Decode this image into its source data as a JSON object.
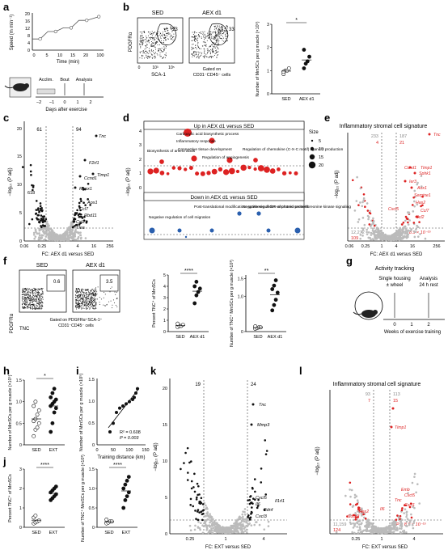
{
  "panel_letters": [
    "a",
    "b",
    "c",
    "d",
    "e",
    "f",
    "g",
    "h",
    "i",
    "j",
    "k",
    "l"
  ],
  "a": {
    "ylabel": "Speed (m min⁻¹)",
    "yticks": [
      "0",
      "4",
      "8",
      "12",
      "16",
      "20"
    ],
    "xticks": [
      "0",
      "5",
      "10",
      "15",
      "20",
      "100"
    ],
    "xlabel": "Time (min)",
    "timeline_labels": [
      "Acclim.",
      "Bout",
      "Analysis"
    ],
    "timeline_ticks": [
      "−2",
      "−1",
      "0",
      "1",
      "2"
    ],
    "timeline_xlabel": "Days after exercise"
  },
  "b": {
    "flow_titles": [
      "SED",
      "AEX d1"
    ],
    "gate_values": [
      "13",
      "33"
    ],
    "yaxis": "PDGFRα",
    "xaxis": "SCA-1",
    "x_ticks": [
      "0",
      "10³",
      "10⁵"
    ],
    "gated_note": "Gated on",
    "gated_note2": "CD31⁻CD45⁻ cells",
    "ylabel": "Number of MmSCs per g muscle (×10⁵)",
    "yticks": [
      "0",
      "1",
      "2",
      "3"
    ],
    "xticks": [
      "SED",
      "AEX d1"
    ],
    "sig": "*"
  },
  "c": {
    "counts": [
      "61",
      "94"
    ],
    "left_count": "618",
    "xlabel": "FC: AEX d1 versus SED",
    "ylabel": "−log₁₀ (P adj)",
    "xticks": [
      "0.06",
      "0.25",
      "1",
      "4",
      "16",
      "256"
    ],
    "yticks": [
      "0",
      "5",
      "10",
      "15",
      "20"
    ],
    "genes": [
      "Tnc",
      "F2rl1",
      "Ccnd1",
      "Timp1",
      "Runx1",
      "Aox1",
      "Ccl7",
      "Rbd11",
      "Ccl2",
      "Tlea"
    ]
  },
  "d": {
    "up_title": "Up in AEX d1 versus SED",
    "down_title": "Down in AEX d1 versus SED",
    "ylabel": "−log₁₀ (P adj)",
    "yticks": [
      "0",
      "1",
      "2",
      "3",
      "4"
    ],
    "size_title": "Size",
    "sizes": [
      "5",
      "10",
      "15",
      "20"
    ],
    "up_terms": [
      "Carboxylic acid biosynthetic process",
      "Inflammatory response",
      "Biosynthesis of amino acids",
      "Connective tissue development",
      "Regulation of angiogenesis",
      "Regulation of chemokine (C-X-C motif) ligand 2 production"
    ],
    "down_terms": [
      "Post-translational modification: synthesis of GPI-anchored proteins",
      "Negative regulation of protein serine/threonine kinase signaling",
      "Negative regulation of cell migration"
    ]
  },
  "e": {
    "title": "Inflammatory stromal cell signature",
    "counts_top": [
      "233",
      "187"
    ],
    "counts_red": [
      "4",
      "21"
    ],
    "bottom_left": [
      "12,272",
      "109"
    ],
    "pvalue": "P = 8.9 × 10⁻¹⁵",
    "xlabel": "FC: AEX d1 versus SED",
    "ylabel": "−log₁₀ (P adj)",
    "xticks": [
      "0.06",
      "0.25",
      "1",
      "4",
      "16",
      "256"
    ],
    "genes": [
      "Tnc",
      "Ccnd1",
      "Timp1",
      "Sphk1",
      "Ier3",
      "Aox1",
      "Serpine1",
      "Has2",
      "Ccl7",
      "Ccl2",
      "Cxcl5"
    ]
  },
  "f": {
    "flow_titles": [
      "SED",
      "AEX d1"
    ],
    "gate_values": [
      "0.6",
      "3.5"
    ],
    "yaxis": "PDGFRα",
    "xaxis": "TNC",
    "gated_note": "Gated on PDGFRα⁺SCA-1⁺",
    "gated_note2": "CD31⁻CD45⁻ cells",
    "ylabel1": "Percent TNC⁺ of MmSCs",
    "yticks1": [
      "0",
      "1",
      "2",
      "3",
      "4",
      "5"
    ],
    "ylabel2": "Number of TNC⁺ MmSCs per g muscle (×10³)",
    "yticks2": [
      "0",
      "1.0",
      "1.5"
    ],
    "xticks": [
      "SED",
      "AEX d1"
    ],
    "sig1": "****",
    "sig2": "**"
  },
  "g": {
    "title": "Activity tracking",
    "labels": [
      "Single housing",
      "± wheel",
      "Analysis",
      "24 h rest"
    ],
    "ticks": [
      "0",
      "1",
      "2"
    ],
    "xlabel": "Weeks of exercise training"
  },
  "h": {
    "ylabel": "Number of MmSCs per g muscle (×10⁵)",
    "yticks": [
      "0",
      "0.5",
      "1.0",
      "1.5"
    ],
    "xticks": [
      "SED",
      "EXT"
    ],
    "sig": "*"
  },
  "i": {
    "ylabel": "Number of MmSCs per g muscle (×10⁵)",
    "yticks": [
      "0",
      "0.5",
      "1.0",
      "1.5"
    ],
    "xticks": [
      "0",
      "50",
      "100",
      "150"
    ],
    "xlabel": "Training distance (km)",
    "r2": "R² = 0.608",
    "p": "P = 0.003"
  },
  "j": {
    "ylabel1": "Percent TNC⁺ of MmSCs",
    "yticks1": [
      "0",
      "1",
      "2",
      "3"
    ],
    "ylabel2": "Number of TNC⁺ MmSCs per g muscle (×10³)",
    "yticks2": [
      "0",
      "0.5",
      "1.0",
      "1.5"
    ],
    "xticks": [
      "SED",
      "EXT"
    ],
    "sig1": "****",
    "sig2": "****"
  },
  "k": {
    "counts": [
      "19",
      "24"
    ],
    "xlabel": "FC: EXT versus SED",
    "ylabel": "−log₁₀ (P adj)",
    "xticks": [
      "0.25",
      "1",
      "4"
    ],
    "yticks": [
      "0",
      "5",
      "10",
      "15",
      "20"
    ],
    "genes": [
      "Tnc",
      "Mmp3",
      "Cxcl5",
      "Il1rl1",
      "Il6",
      "Bdnf",
      "Cxcl3"
    ]
  },
  "l": {
    "title": "Inflammatory stromal cell signature",
    "counts_top": [
      "93",
      "113"
    ],
    "counts_red": [
      "7",
      "15"
    ],
    "bottom_left": [
      "11,159",
      "124"
    ],
    "pvalue": "P = 8.9 × 10⁻¹⁵",
    "xlabel": "FC: EXT versus SED",
    "ylabel": "−log₁₀ (P adj)",
    "xticks": [
      "0.25",
      "1",
      "4"
    ],
    "genes": [
      "Timp1",
      "Emb",
      "Cxcl5",
      "Tnc",
      "Cxcl1",
      "Il6",
      "Has2",
      "Socs3"
    ]
  },
  "chart_data": [
    {
      "panel": "a",
      "type": "line",
      "x": [
        0,
        2,
        4,
        6,
        8,
        10,
        12,
        14,
        20
      ],
      "y": [
        6,
        6,
        10,
        10,
        12,
        12,
        16,
        16,
        18
      ]
    },
    {
      "panel": "b",
      "type": "scatter",
      "categories": [
        "SED",
        "AEX d1"
      ],
      "series": [
        {
          "name": "SED",
          "values": [
            0.85,
            1.0,
            1.0,
            1.1,
            0.95
          ]
        },
        {
          "name": "AEX d1",
          "values": [
            1.1,
            1.3,
            1.4,
            1.6,
            1.9
          ]
        }
      ],
      "ylim": [
        0,
        3
      ]
    },
    {
      "panel": "f-1",
      "type": "scatter",
      "categories": [
        "SED",
        "AEX d1"
      ],
      "series": [
        {
          "name": "SED",
          "values": [
            0.4,
            0.5,
            0.5,
            0.6,
            0.7
          ]
        },
        {
          "name": "AEX d1",
          "values": [
            2.5,
            3.2,
            3.5,
            3.8,
            4.0,
            4.4
          ]
        }
      ],
      "ylim": [
        0,
        5
      ]
    },
    {
      "panel": "f-2",
      "type": "scatter",
      "categories": [
        "SED",
        "AEX d1"
      ],
      "series": [
        {
          "name": "SED",
          "values": [
            0.08,
            0.1,
            0.12,
            0.12,
            0.15
          ]
        },
        {
          "name": "AEX d1",
          "values": [
            0.6,
            0.75,
            0.9,
            1.1,
            1.2,
            1.3,
            1.45
          ]
        }
      ],
      "ylim": [
        0,
        1.6
      ]
    },
    {
      "panel": "h",
      "type": "scatter",
      "categories": [
        "SED",
        "EXT"
      ],
      "series": [
        {
          "name": "SED",
          "values": [
            0.2,
            0.35,
            0.4,
            0.5,
            0.55,
            0.6,
            0.7,
            0.8,
            0.9,
            1.0
          ]
        },
        {
          "name": "EXT",
          "values": [
            0.3,
            0.5,
            0.75,
            0.85,
            0.9,
            0.95,
            1.0,
            1.05,
            1.1,
            1.2,
            1.3
          ]
        }
      ],
      "ylim": [
        0,
        1.5
      ]
    },
    {
      "panel": "i",
      "type": "scatter",
      "x": [
        40,
        50,
        60,
        70,
        80,
        90,
        100,
        110,
        115,
        120,
        125
      ],
      "y": [
        0.3,
        0.5,
        0.75,
        0.85,
        0.9,
        0.95,
        1.0,
        1.05,
        1.1,
        1.2,
        1.3
      ],
      "xlim": [
        0,
        150
      ],
      "ylim": [
        0,
        1.5
      ]
    },
    {
      "panel": "j-1",
      "type": "scatter",
      "categories": [
        "SED",
        "EXT"
      ],
      "series": [
        {
          "name": "SED",
          "values": [
            0.2,
            0.25,
            0.3,
            0.35,
            0.5,
            0.6
          ]
        },
        {
          "name": "EXT",
          "values": [
            1.4,
            1.5,
            1.6,
            1.7,
            1.8,
            1.9,
            2.0,
            2.1
          ]
        }
      ],
      "ylim": [
        0,
        3
      ]
    },
    {
      "panel": "j-2",
      "type": "scatter",
      "categories": [
        "SED",
        "EXT"
      ],
      "series": [
        {
          "name": "SED",
          "values": [
            0.1,
            0.12,
            0.15,
            0.15,
            0.2
          ]
        },
        {
          "name": "EXT",
          "values": [
            0.5,
            0.7,
            0.8,
            0.9,
            1.0,
            1.1,
            1.2,
            1.3
          ]
        }
      ],
      "ylim": [
        0,
        1.5
      ]
    }
  ]
}
